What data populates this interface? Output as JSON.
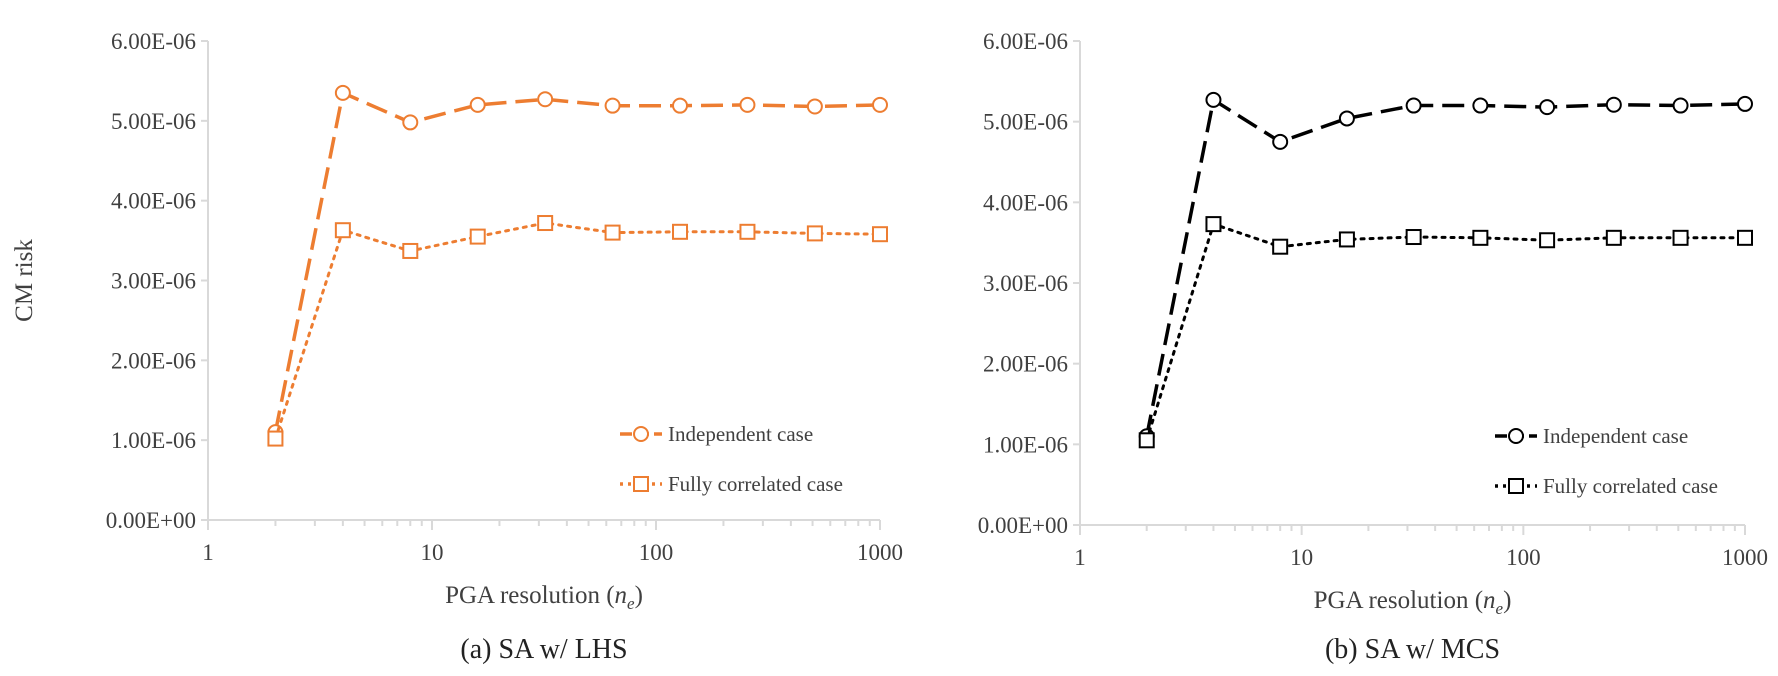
{
  "chart_data": [
    {
      "type": "line",
      "caption": "(a) SA w/ LHS",
      "ylabel": "CM risk",
      "xlabel_prefix": "PGA resolution (",
      "xlabel_var": "n",
      "xlabel_sub": "e",
      "xlabel_suffix": ")",
      "xscale": "log",
      "xlim": [
        1,
        1000
      ],
      "ylim": [
        0,
        6e-06
      ],
      "x_ticks": [
        "1",
        "10",
        "100",
        "1000"
      ],
      "y_ticks": [
        "0.00E+00",
        "1.00E-06",
        "2.00E-06",
        "3.00E-06",
        "4.00E-06",
        "5.00E-06",
        "6.00E-06"
      ],
      "grid": "vertical-minor-ticks-only",
      "legend_position": "bottom-right",
      "color": "#ED7D31",
      "x": [
        2,
        4,
        8,
        16,
        32,
        64,
        128,
        256,
        512,
        1000
      ],
      "series": [
        {
          "name": "Independent case",
          "marker": "circle",
          "dash": "long-dash",
          "values": [
            1.1e-06,
            5.35e-06,
            4.98e-06,
            5.2e-06,
            5.27e-06,
            5.19e-06,
            5.19e-06,
            5.2e-06,
            5.18e-06,
            5.2e-06
          ]
        },
        {
          "name": "Fully correlated case",
          "marker": "square",
          "dash": "dotted",
          "values": [
            1.02e-06,
            3.63e-06,
            3.37e-06,
            3.55e-06,
            3.72e-06,
            3.6e-06,
            3.61e-06,
            3.61e-06,
            3.59e-06,
            3.58e-06
          ]
        }
      ]
    },
    {
      "type": "line",
      "caption": "(b) SA w/ MCS",
      "ylabel": "",
      "xlabel_prefix": "PGA resolution (",
      "xlabel_var": "n",
      "xlabel_sub": "e",
      "xlabel_suffix": ")",
      "xscale": "log",
      "xlim": [
        1,
        1000
      ],
      "ylim": [
        0,
        6e-06
      ],
      "x_ticks": [
        "1",
        "10",
        "100",
        "1000"
      ],
      "y_ticks": [
        "0.00E+00",
        "1.00E-06",
        "2.00E-06",
        "3.00E-06",
        "4.00E-06",
        "5.00E-06",
        "6.00E-06"
      ],
      "grid": "vertical-minor-ticks-only",
      "legend_position": "bottom-right",
      "color": "#000000",
      "x": [
        2,
        4,
        8,
        16,
        32,
        64,
        128,
        256,
        512,
        1000
      ],
      "series": [
        {
          "name": "Independent case",
          "marker": "circle",
          "dash": "long-dash",
          "values": [
            1.1e-06,
            5.27e-06,
            4.75e-06,
            5.04e-06,
            5.2e-06,
            5.2e-06,
            5.18e-06,
            5.21e-06,
            5.2e-06,
            5.22e-06
          ]
        },
        {
          "name": "Fully correlated case",
          "marker": "square",
          "dash": "dotted",
          "values": [
            1.05e-06,
            3.73e-06,
            3.45e-06,
            3.54e-06,
            3.57e-06,
            3.56e-06,
            3.53e-06,
            3.56e-06,
            3.56e-06,
            3.56e-06
          ]
        }
      ]
    }
  ]
}
